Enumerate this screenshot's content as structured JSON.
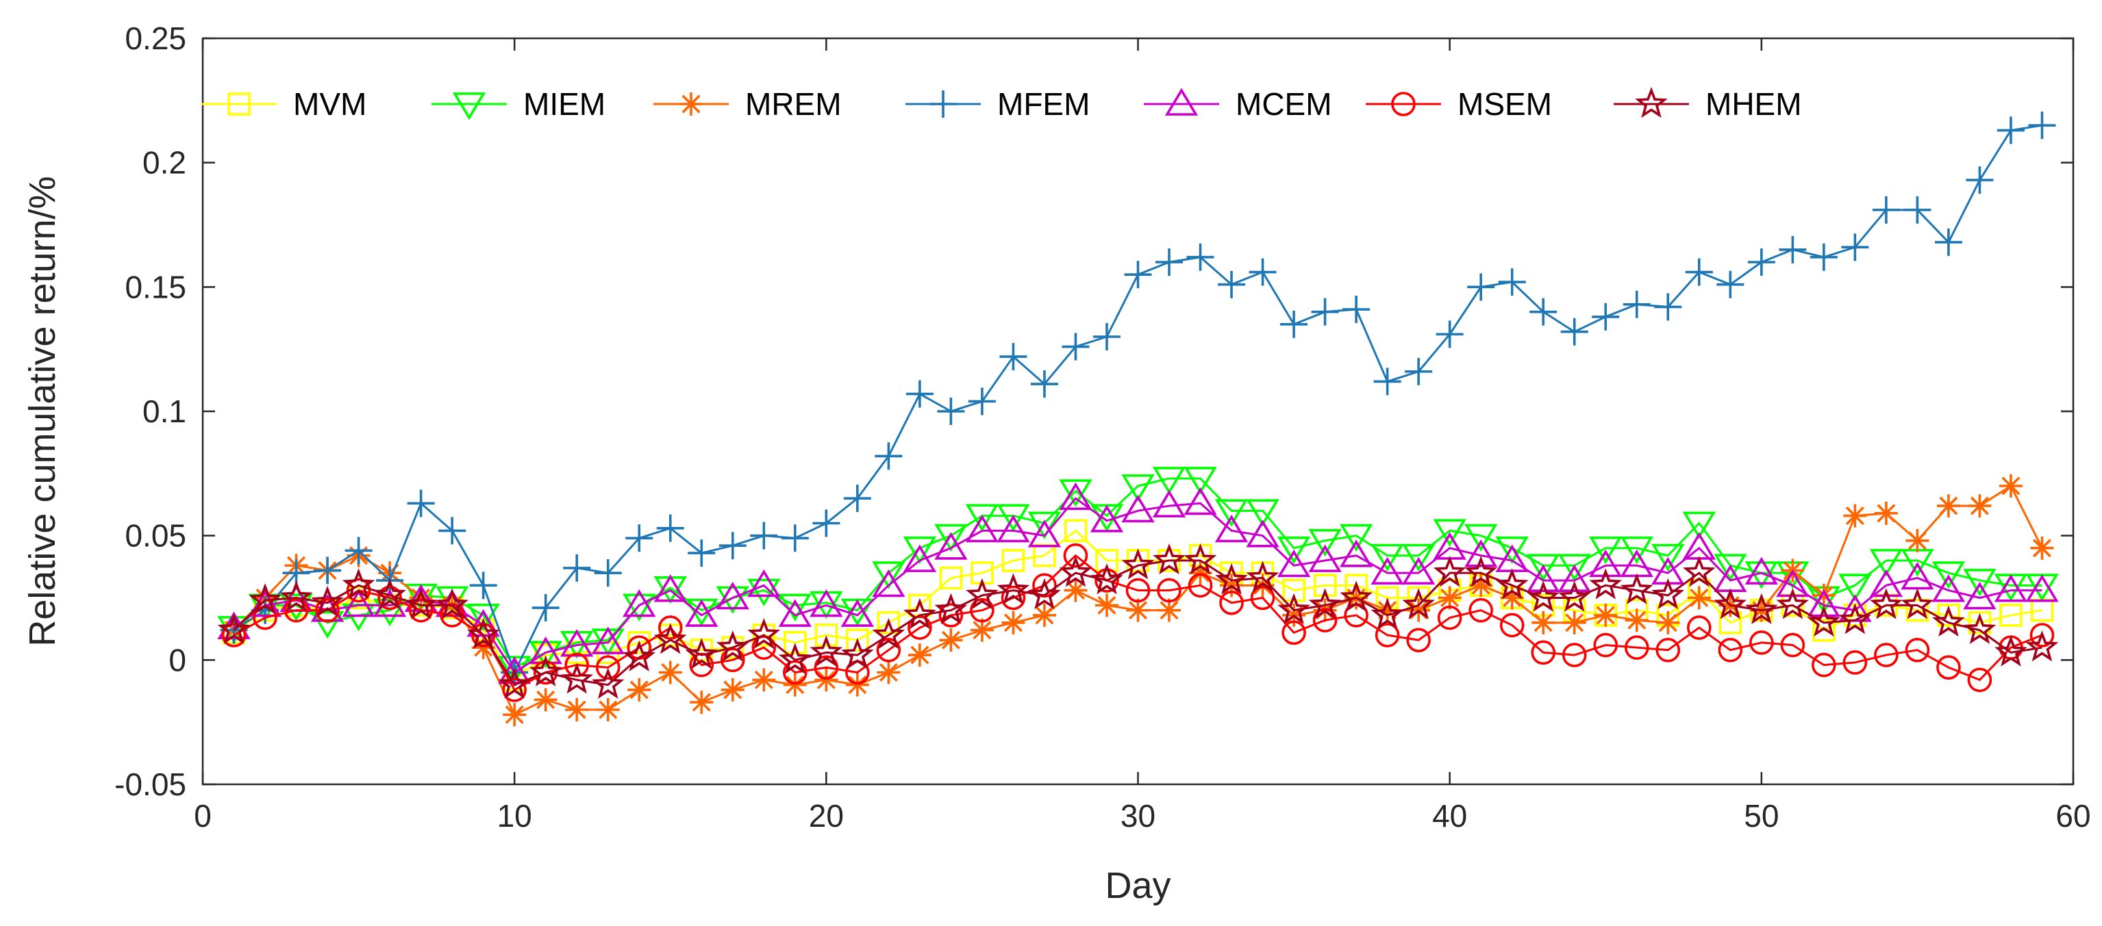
{
  "chart_data": {
    "type": "line",
    "title": "",
    "xlabel": "Day",
    "ylabel": "Relative cumulative return/%",
    "xlim": [
      0,
      60
    ],
    "ylim": [
      -0.05,
      0.25
    ],
    "xticks": [
      0,
      10,
      20,
      30,
      40,
      50,
      60
    ],
    "xtick_labels": [
      "0",
      "10",
      "20",
      "30",
      "40",
      "50",
      "60"
    ],
    "yticks": [
      -0.05,
      0,
      0.05,
      0.1,
      0.15,
      0.2,
      0.25
    ],
    "ytick_labels": [
      "-0.05",
      "0",
      "0.05",
      "0.1",
      "0.15",
      "0.2",
      "0.25"
    ],
    "grid": false,
    "legend": {
      "position": "top",
      "orientation": "horizontal"
    },
    "x": [
      1,
      2,
      3,
      4,
      5,
      6,
      7,
      8,
      9,
      10,
      11,
      12,
      13,
      14,
      15,
      16,
      17,
      18,
      19,
      20,
      21,
      22,
      23,
      24,
      25,
      26,
      27,
      28,
      29,
      30,
      31,
      32,
      33,
      34,
      35,
      36,
      37,
      38,
      39,
      40,
      41,
      42,
      43,
      44,
      45,
      46,
      47,
      48,
      49,
      50,
      51,
      52,
      53,
      54,
      55,
      56,
      57,
      58,
      59
    ],
    "series": [
      {
        "name": "MVM",
        "color": "#FFFF00",
        "marker": "square",
        "values": [
          0.011,
          0.02,
          0.022,
          0.02,
          0.025,
          0.022,
          0.022,
          0.021,
          0.012,
          -0.008,
          0.002,
          0.003,
          0.003,
          0.007,
          0.01,
          0.004,
          0.005,
          0.01,
          0.007,
          0.01,
          0.008,
          0.015,
          0.022,
          0.033,
          0.035,
          0.04,
          0.042,
          0.052,
          0.04,
          0.04,
          0.04,
          0.042,
          0.035,
          0.035,
          0.028,
          0.03,
          0.03,
          0.025,
          0.025,
          0.028,
          0.03,
          0.025,
          0.022,
          0.02,
          0.018,
          0.02,
          0.018,
          0.028,
          0.015,
          0.02,
          0.022,
          0.012,
          0.018,
          0.022,
          0.02,
          0.018,
          0.015,
          0.018,
          0.02
        ]
      },
      {
        "name": "MIEM",
        "color": "#00FF00",
        "marker": "triangle-down",
        "values": [
          0.013,
          0.022,
          0.022,
          0.015,
          0.018,
          0.02,
          0.026,
          0.025,
          0.018,
          -0.003,
          0.003,
          0.007,
          0.008,
          0.022,
          0.029,
          0.02,
          0.025,
          0.028,
          0.022,
          0.023,
          0.02,
          0.035,
          0.045,
          0.05,
          0.058,
          0.058,
          0.055,
          0.068,
          0.058,
          0.07,
          0.073,
          0.073,
          0.06,
          0.06,
          0.045,
          0.048,
          0.05,
          0.042,
          0.042,
          0.052,
          0.05,
          0.045,
          0.038,
          0.038,
          0.045,
          0.045,
          0.042,
          0.055,
          0.038,
          0.035,
          0.035,
          0.025,
          0.03,
          0.04,
          0.04,
          0.035,
          0.032,
          0.03,
          0.03
        ]
      },
      {
        "name": "MREM",
        "color": "#FF6600",
        "marker": "asterisk",
        "values": [
          0.012,
          0.025,
          0.038,
          0.036,
          0.042,
          0.035,
          0.025,
          0.022,
          0.005,
          -0.022,
          -0.016,
          -0.02,
          -0.02,
          -0.012,
          -0.005,
          -0.017,
          -0.012,
          -0.008,
          -0.01,
          -0.008,
          -0.01,
          -0.005,
          0.002,
          0.008,
          0.012,
          0.015,
          0.018,
          0.028,
          0.022,
          0.02,
          0.02,
          0.035,
          0.03,
          0.03,
          0.018,
          0.02,
          0.025,
          0.02,
          0.02,
          0.025,
          0.03,
          0.025,
          0.015,
          0.015,
          0.018,
          0.016,
          0.015,
          0.025,
          0.022,
          0.02,
          0.036,
          0.026,
          0.058,
          0.059,
          0.048,
          0.062,
          0.062,
          0.07,
          0.045
        ]
      },
      {
        "name": "MFEM",
        "color": "#1F77B4",
        "marker": "plus",
        "values": [
          0.012,
          0.02,
          0.035,
          0.036,
          0.044,
          0.032,
          0.063,
          0.052,
          0.03,
          -0.005,
          0.021,
          0.037,
          0.035,
          0.049,
          0.053,
          0.043,
          0.046,
          0.05,
          0.049,
          0.055,
          0.065,
          0.082,
          0.107,
          0.1,
          0.104,
          0.122,
          0.111,
          0.126,
          0.13,
          0.155,
          0.16,
          0.162,
          0.151,
          0.156,
          0.135,
          0.14,
          0.141,
          0.112,
          0.116,
          0.131,
          0.15,
          0.152,
          0.14,
          0.132,
          0.138,
          0.143,
          0.142,
          0.156,
          0.151,
          0.16,
          0.165,
          0.162,
          0.166,
          0.181,
          0.181,
          0.168,
          0.193,
          0.213,
          0.215
        ]
      },
      {
        "name": "MCEM",
        "color": "#CC00CC",
        "marker": "triangle-up",
        "values": [
          0.013,
          0.022,
          0.024,
          0.02,
          0.022,
          0.022,
          0.024,
          0.022,
          0.014,
          -0.005,
          0.003,
          0.006,
          0.007,
          0.022,
          0.028,
          0.018,
          0.025,
          0.03,
          0.018,
          0.022,
          0.018,
          0.03,
          0.04,
          0.045,
          0.052,
          0.052,
          0.05,
          0.065,
          0.056,
          0.06,
          0.062,
          0.063,
          0.052,
          0.05,
          0.038,
          0.04,
          0.042,
          0.035,
          0.035,
          0.045,
          0.042,
          0.04,
          0.032,
          0.032,
          0.038,
          0.038,
          0.035,
          0.045,
          0.032,
          0.035,
          0.03,
          0.022,
          0.02,
          0.03,
          0.033,
          0.028,
          0.025,
          0.028,
          0.028
        ]
      },
      {
        "name": "MSEM",
        "color": "#FF0000",
        "marker": "circle",
        "values": [
          0.01,
          0.017,
          0.02,
          0.02,
          0.028,
          0.025,
          0.02,
          0.018,
          0.01,
          -0.012,
          -0.005,
          -0.002,
          -0.003,
          0.005,
          0.013,
          -0.002,
          0.0,
          0.005,
          -0.005,
          -0.003,
          -0.005,
          0.004,
          0.013,
          0.018,
          0.02,
          0.025,
          0.03,
          0.042,
          0.032,
          0.028,
          0.028,
          0.03,
          0.023,
          0.025,
          0.011,
          0.016,
          0.018,
          0.01,
          0.008,
          0.017,
          0.02,
          0.014,
          0.003,
          0.002,
          0.006,
          0.005,
          0.004,
          0.013,
          0.004,
          0.007,
          0.006,
          -0.002,
          -0.001,
          0.002,
          0.004,
          -0.003,
          -0.008,
          0.005,
          0.01
        ]
      },
      {
        "name": "MHEM",
        "color": "#A3001B",
        "marker": "star",
        "values": [
          0.012,
          0.024,
          0.025,
          0.023,
          0.03,
          0.026,
          0.022,
          0.022,
          0.01,
          -0.01,
          -0.005,
          -0.008,
          -0.01,
          0.001,
          0.008,
          0.002,
          0.005,
          0.01,
          0.0,
          0.003,
          0.002,
          0.01,
          0.018,
          0.02,
          0.026,
          0.028,
          0.026,
          0.035,
          0.032,
          0.038,
          0.04,
          0.04,
          0.032,
          0.033,
          0.02,
          0.022,
          0.025,
          0.018,
          0.022,
          0.035,
          0.035,
          0.03,
          0.025,
          0.025,
          0.03,
          0.028,
          0.026,
          0.035,
          0.022,
          0.02,
          0.022,
          0.015,
          0.016,
          0.022,
          0.022,
          0.015,
          0.012,
          0.003,
          0.005
        ]
      }
    ]
  }
}
